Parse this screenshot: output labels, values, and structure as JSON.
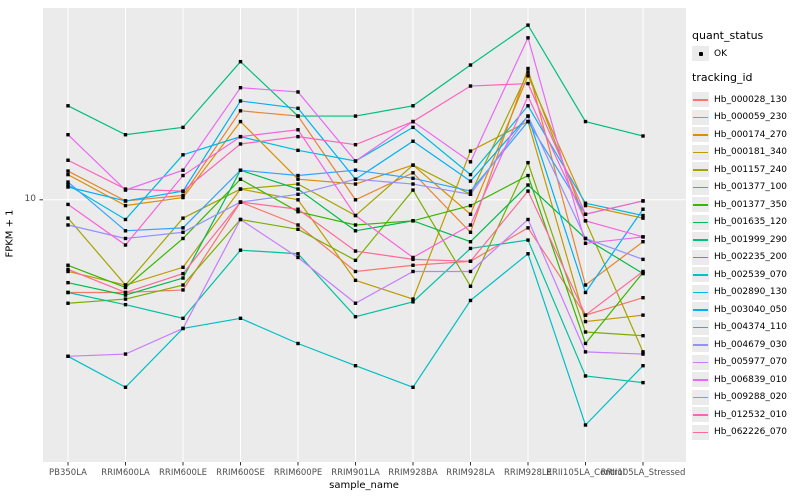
{
  "figure": {
    "y_tick_label": "10"
  },
  "legend": {
    "quant_status": {
      "title": "quant_status",
      "items": [
        {
          "label": "OK",
          "marker": "black-point"
        }
      ]
    },
    "tracking_id": {
      "title": "tracking_id"
    }
  },
  "colors": {
    "panel_background": "#EBEBEB",
    "gridline": "#FFFFFF",
    "tick_text": "#4D4D4D",
    "point": "#000000",
    "legend_key_background": "#EBEBEB"
  },
  "chart_data": {
    "type": "line",
    "title": "",
    "xlabel": "sample_name",
    "ylabel": "FPKM + 1",
    "y_scale": "log10",
    "ylim": [
      0.98,
      54.7
    ],
    "y_major_gridlines": [
      10
    ],
    "y_tick_labels": [
      "10"
    ],
    "grid": true,
    "legend_position": "right",
    "point_marker": "black-square",
    "categories": [
      "PB350LA",
      "RRIM600LA",
      "RRIM600LE",
      "RRIM600SE",
      "RRIM600PE",
      "RRIM901LA",
      "RRIM928BA",
      "RRIM928LA",
      "RRIM928LE",
      "RRII105LA_Control",
      "RRII105LA_Stressed"
    ],
    "series": [
      {
        "name": "Hb_000028_130",
        "color": "#F8766D",
        "values": [
          4.4,
          4.4,
          4.5,
          9.8,
          8.0,
          5.3,
          5.6,
          5.8,
          7.8,
          3.6,
          4.2
        ]
      },
      {
        "name": "Hb_000059_230",
        "color": "#EA8331",
        "values": [
          12.9,
          9.9,
          10.4,
          22,
          21,
          10,
          12.7,
          7.5,
          32,
          4.7,
          6.9
        ]
      },
      {
        "name": "Hb_000174_270",
        "color": "#D89000",
        "values": [
          12.5,
          9.5,
          10.2,
          20,
          12,
          11.5,
          13.6,
          8.8,
          30,
          9.5,
          8.5
        ]
      },
      {
        "name": "Hb_000181_340",
        "color": "#C09B00",
        "values": [
          5.3,
          4.7,
          5.5,
          11,
          10,
          4.9,
          4.15,
          15.4,
          20,
          3.4,
          3.6
        ]
      },
      {
        "name": "Hb_001157_240",
        "color": "#A3A500",
        "values": [
          8.5,
          4.7,
          8.5,
          11,
          11.5,
          8.7,
          13.6,
          10.5,
          31,
          8.3,
          2.6
        ]
      },
      {
        "name": "Hb_001377_100",
        "color": "#7CAE00",
        "values": [
          4.0,
          4.15,
          4.7,
          8.4,
          7.7,
          5.85,
          10.9,
          4.65,
          13.9,
          3.1,
          3.0
        ]
      },
      {
        "name": "Hb_001377_350",
        "color": "#39B600",
        "values": [
          5.6,
          4.6,
          7.1,
          12,
          9.0,
          8.0,
          8.3,
          9.5,
          12.4,
          2.8,
          5.25
        ]
      },
      {
        "name": "Hb_001635_120",
        "color": "#00BB4E",
        "values": [
          4.8,
          4.3,
          5.0,
          13,
          11,
          7.6,
          8.3,
          6.9,
          11.4,
          7.1,
          5.2
        ]
      },
      {
        "name": "Hb_001999_290",
        "color": "#00BF7D",
        "values": [
          23,
          17.8,
          19,
          34,
          21,
          21,
          23,
          33,
          47,
          20,
          17.6
        ]
      },
      {
        "name": "Hb_002235_200",
        "color": "#00C1A3",
        "values": [
          4.4,
          3.95,
          3.5,
          6.4,
          6.2,
          3.55,
          4.05,
          6.5,
          7.0,
          2.1,
          1.98
        ]
      },
      {
        "name": "Hb_002539_070",
        "color": "#00BFC4",
        "values": [
          2.5,
          1.9,
          3.2,
          3.5,
          2.8,
          2.3,
          1.9,
          4.1,
          6.2,
          1.36,
          2.3
        ]
      },
      {
        "name": "Hb_002890_130",
        "color": "#00BAE0",
        "values": [
          11.4,
          8.4,
          14.9,
          17.5,
          15.5,
          14.1,
          19,
          12.5,
          23,
          9.7,
          8.7
        ]
      },
      {
        "name": "Hb_003040_050",
        "color": "#00B0F6",
        "values": [
          11.2,
          9.9,
          10.8,
          24,
          22.5,
          12,
          16.8,
          11.8,
          21,
          4.4,
          9.2
        ]
      },
      {
        "name": "Hb_004374_110",
        "color": "#35A2FF",
        "values": [
          11.7,
          7.6,
          7.8,
          13,
          12.4,
          13,
          12.1,
          10.8,
          20,
          8.8,
          9.9
        ]
      },
      {
        "name": "Hb_004679_030",
        "color": "#9590FF",
        "values": [
          8.0,
          7.1,
          7.5,
          9.8,
          10.5,
          12,
          11.5,
          10.5,
          21,
          7.1,
          5.9
        ]
      },
      {
        "name": "Hb_005977_070",
        "color": "#C77CFF",
        "values": [
          2.5,
          2.55,
          3.2,
          8.4,
          6.0,
          4.0,
          5.3,
          5.3,
          8.4,
          2.6,
          2.55
        ]
      },
      {
        "name": "Hb_006839_010",
        "color": "#E76BF3",
        "values": [
          17.8,
          10.9,
          13,
          27,
          26,
          14.1,
          20,
          14,
          42,
          6.8,
          7.2
        ]
      },
      {
        "name": "Hb_009288_020",
        "color": "#FA62DB",
        "values": [
          9.6,
          6.7,
          12.4,
          17.5,
          18.6,
          8.7,
          6.0,
          8.0,
          25,
          8.3,
          7.2
        ]
      },
      {
        "name": "Hb_012532_010",
        "color": "#FF62BC",
        "values": [
          14.2,
          11,
          10.8,
          16.4,
          17.5,
          16.3,
          20,
          27.4,
          28,
          8.8,
          9.9
        ]
      },
      {
        "name": "Hb_062226_070",
        "color": "#FF6A98",
        "values": [
          5.4,
          4.4,
          5.2,
          9.8,
          9.2,
          6.35,
          5.9,
          5.8,
          10.8,
          3.6,
          5.3
        ]
      }
    ]
  }
}
